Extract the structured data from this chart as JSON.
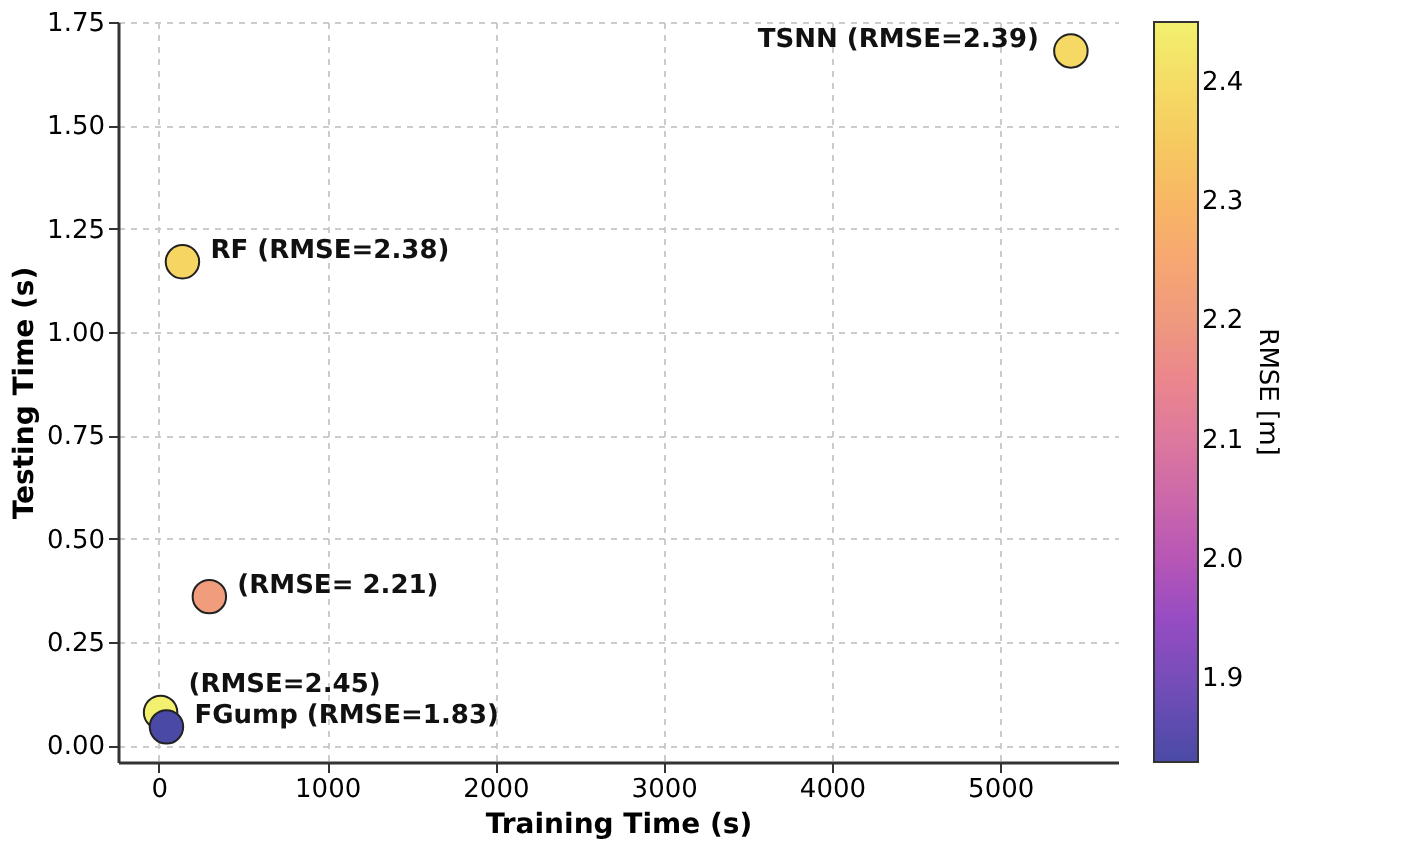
{
  "chart_data": {
    "type": "scatter",
    "xlabel": "Training Time (s)",
    "ylabel": "Testing Time (s)",
    "clabel": "RMSE [m]",
    "x": [
      140,
      300,
      10,
      45,
      5420
    ],
    "values": [
      1.17,
      0.36,
      0.08,
      0.045,
      1.68
    ],
    "cvalues": [
      2.38,
      2.21,
      2.45,
      1.83,
      2.39
    ],
    "clim": [
      1.83,
      2.45
    ],
    "cticks": [
      1.9,
      {
        "value": 2,
        "label": "2.0"
      },
      2.1,
      2.2,
      2.3,
      2.4
    ],
    "xlim": [
      -243,
      5700
    ],
    "xticks": [
      0,
      1000,
      2000,
      3000,
      4000,
      5000
    ],
    "ylim": [
      -0.04,
      1.75
    ],
    "yticks": [
      {
        "value": 0,
        "label": "0.00"
      },
      {
        "value": 0.25,
        "label": "0.25"
      },
      {
        "value": 0.5,
        "label": "0.50"
      },
      {
        "value": 0.75,
        "label": "0.75"
      },
      {
        "value": 1,
        "label": "1.00"
      },
      {
        "value": 1.25,
        "label": "1.25"
      },
      {
        "value": 1.5,
        "label": "1.50"
      },
      {
        "value": 1.75,
        "label": "1.75"
      }
    ],
    "annotations": [
      {
        "text": "RF (RMSE=2.38)",
        "x": 140,
        "y": 1.17
      },
      {
        "text": "(RMSE= 2.21)",
        "x": 300,
        "y": 0.36
      },
      {
        "text": "(RMSE=2.45)",
        "x": 10,
        "y": 0.08
      },
      {
        "text": "FGump (RMSE=1.83)",
        "x": 45,
        "y": 0.045
      },
      {
        "text": "TSNN (RMSE=2.39)",
        "x": 5420,
        "y": 1.68
      }
    ],
    "grid": true,
    "marker": "circle"
  }
}
